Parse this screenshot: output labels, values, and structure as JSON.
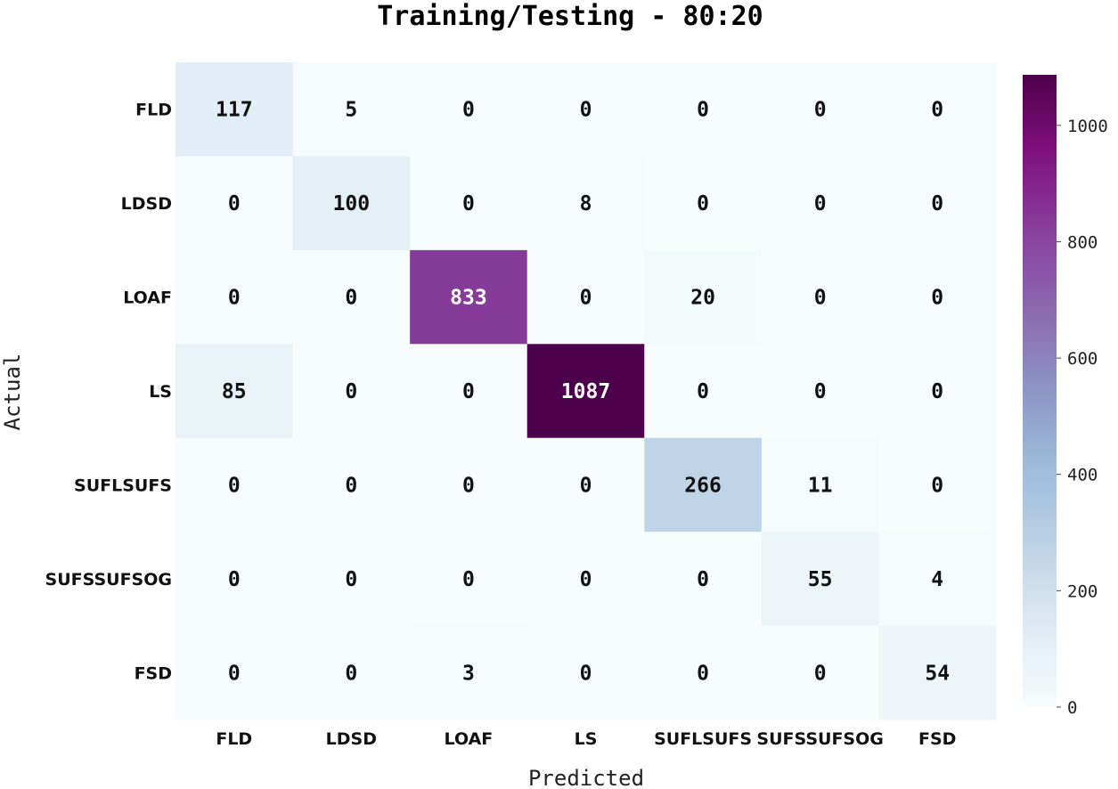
{
  "chart_data": {
    "type": "heatmap",
    "title": "Training/Testing - 80:20",
    "xlabel": "Predicted",
    "ylabel": "Actual",
    "x_categories": [
      "FLD",
      "LDSD",
      "LOAF",
      "LS",
      "SUFLSUFS",
      "SUFSSUFSOG",
      "FSD"
    ],
    "y_categories": [
      "FLD",
      "LDSD",
      "LOAF",
      "LS",
      "SUFLSUFS",
      "SUFSSUFSOG",
      "FSD"
    ],
    "values": [
      [
        117,
        5,
        0,
        0,
        0,
        0,
        0
      ],
      [
        0,
        100,
        0,
        8,
        0,
        0,
        0
      ],
      [
        0,
        0,
        833,
        0,
        20,
        0,
        0
      ],
      [
        85,
        0,
        0,
        1087,
        0,
        0,
        0
      ],
      [
        0,
        0,
        0,
        0,
        266,
        11,
        0
      ],
      [
        0,
        0,
        0,
        0,
        0,
        55,
        4
      ],
      [
        0,
        0,
        3,
        0,
        0,
        0,
        54
      ]
    ],
    "colorbar": {
      "min": 0,
      "max": 1087,
      "ticks": [
        0,
        200,
        400,
        600,
        800,
        1000
      ],
      "colormap": "BuPu"
    },
    "colors": {
      "text_dark": "#111111",
      "text_light": "#ffffff"
    }
  }
}
